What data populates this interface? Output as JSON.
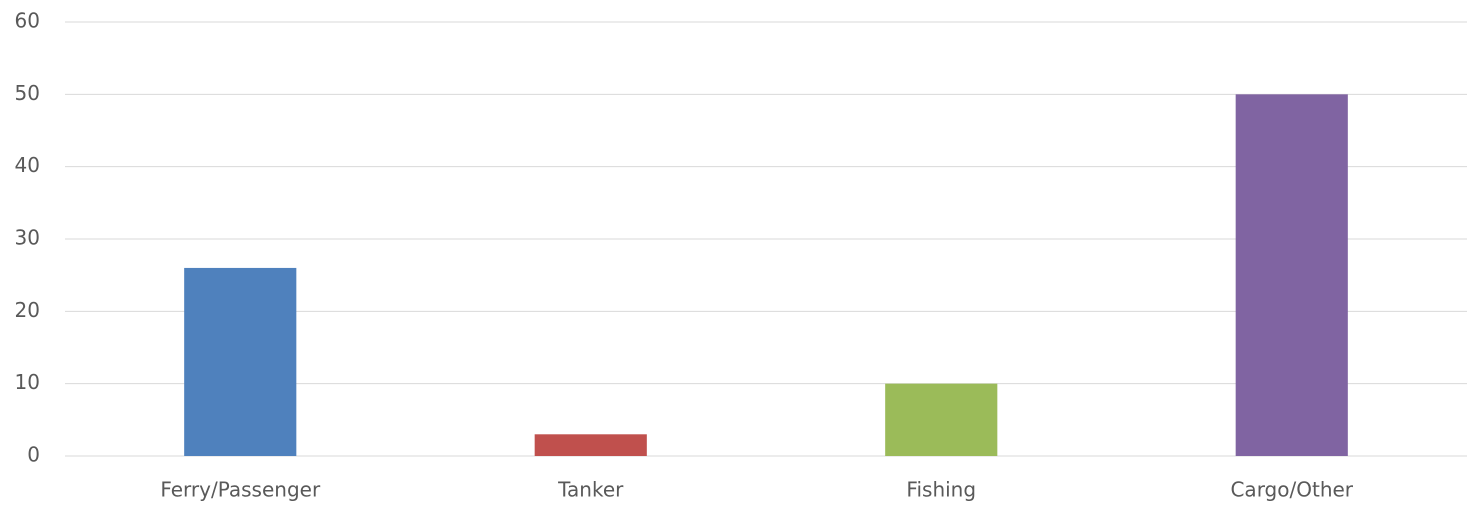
{
  "chart_data": {
    "type": "bar",
    "categories": [
      "Ferry/Passenger",
      "Tanker",
      "Fishing",
      "Cargo/Other"
    ],
    "values": [
      26,
      3,
      10,
      50
    ],
    "colors": [
      "#4f81bd",
      "#c0504d",
      "#9bbb59",
      "#8064a2"
    ],
    "ylim": [
      0,
      60
    ],
    "yticks": [
      0,
      10,
      20,
      30,
      40,
      50,
      60
    ],
    "grid": true
  }
}
